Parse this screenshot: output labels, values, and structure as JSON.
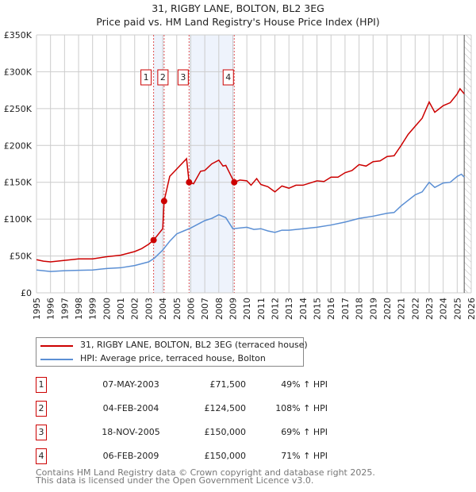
{
  "chart_data": {
    "type": "line",
    "title": "31, RIGBY LANE, BOLTON, BL2 3EG",
    "subtitle": "Price paid vs. HM Land Registry's House Price Index (HPI)",
    "xlim": [
      1995,
      2026
    ],
    "ylim": [
      0,
      350000
    ],
    "x_ticks": [
      "1995",
      "1996",
      "1997",
      "1998",
      "1999",
      "2000",
      "2001",
      "2002",
      "2003",
      "2004",
      "2005",
      "2006",
      "2007",
      "2008",
      "2009",
      "2010",
      "2011",
      "2012",
      "2013",
      "2014",
      "2015",
      "2016",
      "2017",
      "2018",
      "2019",
      "2020",
      "2021",
      "2022",
      "2023",
      "2024",
      "2025",
      "2026"
    ],
    "y_ticks": [
      {
        "v": 0,
        "label": "£0"
      },
      {
        "v": 50000,
        "label": "£50K"
      },
      {
        "v": 100000,
        "label": "£100K"
      },
      {
        "v": 150000,
        "label": "£150K"
      },
      {
        "v": 200000,
        "label": "£200K"
      },
      {
        "v": 250000,
        "label": "£250K"
      },
      {
        "v": 300000,
        "label": "£300K"
      },
      {
        "v": 350000,
        "label": "£350K"
      }
    ],
    "grid": true,
    "legend_position": "below",
    "shaded_ranges": [
      [
        2003.35,
        2004.1
      ],
      [
        2005.88,
        2009.1
      ]
    ],
    "forecast_hatch_from": 2025.5,
    "series": [
      {
        "name": "31, RIGBY LANE, BOLTON, BL2 3EG (terraced house)",
        "color": "#cc0000",
        "points": [
          [
            1995,
            45000
          ],
          [
            1995.5,
            43000
          ],
          [
            1996,
            42000
          ],
          [
            1997,
            44000
          ],
          [
            1998,
            46000
          ],
          [
            1999,
            46000
          ],
          [
            2000,
            49000
          ],
          [
            2001,
            51000
          ],
          [
            2002,
            56000
          ],
          [
            2002.5,
            60000
          ],
          [
            2003,
            66000
          ],
          [
            2003.35,
            71500
          ],
          [
            2004,
            87000
          ],
          [
            2004.1,
            124500
          ],
          [
            2004.5,
            158000
          ],
          [
            2005,
            168000
          ],
          [
            2005.7,
            182000
          ],
          [
            2005.88,
            150000
          ],
          [
            2006.2,
            148000
          ],
          [
            2006.7,
            165000
          ],
          [
            2007,
            166000
          ],
          [
            2007.5,
            175000
          ],
          [
            2008,
            180000
          ],
          [
            2008.3,
            172000
          ],
          [
            2008.5,
            173000
          ],
          [
            2009.1,
            150000
          ],
          [
            2009.5,
            153000
          ],
          [
            2010,
            152000
          ],
          [
            2010.3,
            146000
          ],
          [
            2010.7,
            155000
          ],
          [
            2011,
            147000
          ],
          [
            2011.5,
            144000
          ],
          [
            2012,
            137000
          ],
          [
            2012.5,
            145000
          ],
          [
            2013,
            142000
          ],
          [
            2013.5,
            146000
          ],
          [
            2014,
            146000
          ],
          [
            2015,
            152000
          ],
          [
            2015.5,
            151000
          ],
          [
            2016,
            157000
          ],
          [
            2016.5,
            157000
          ],
          [
            2017,
            163000
          ],
          [
            2017.5,
            166000
          ],
          [
            2018,
            174000
          ],
          [
            2018.5,
            172000
          ],
          [
            2019,
            178000
          ],
          [
            2019.5,
            179000
          ],
          [
            2020,
            185000
          ],
          [
            2020.5,
            186000
          ],
          [
            2021,
            200000
          ],
          [
            2021.5,
            215000
          ],
          [
            2022,
            226000
          ],
          [
            2022.5,
            237000
          ],
          [
            2023,
            259000
          ],
          [
            2023.4,
            245000
          ],
          [
            2024,
            254000
          ],
          [
            2024.5,
            258000
          ],
          [
            2025,
            270000
          ],
          [
            2025.2,
            277000
          ],
          [
            2025.5,
            270000
          ]
        ]
      },
      {
        "name": "HPI: Average price, terraced house, Bolton",
        "color": "#5b8fd4",
        "points": [
          [
            1995,
            31000
          ],
          [
            1996,
            29000
          ],
          [
            1997,
            30000
          ],
          [
            1998,
            30500
          ],
          [
            1999,
            31000
          ],
          [
            2000,
            33000
          ],
          [
            2001,
            34000
          ],
          [
            2002,
            37000
          ],
          [
            2003,
            42000
          ],
          [
            2003.4,
            47000
          ],
          [
            2004,
            58000
          ],
          [
            2004.5,
            70000
          ],
          [
            2005,
            80000
          ],
          [
            2005.5,
            84000
          ],
          [
            2006,
            88000
          ],
          [
            2007,
            98000
          ],
          [
            2007.5,
            101000
          ],
          [
            2008,
            106000
          ],
          [
            2008.5,
            102000
          ],
          [
            2009,
            87000
          ],
          [
            2010,
            89000
          ],
          [
            2010.5,
            86000
          ],
          [
            2011,
            87000
          ],
          [
            2011.5,
            84000
          ],
          [
            2012,
            82000
          ],
          [
            2012.5,
            85000
          ],
          [
            2013,
            85000
          ],
          [
            2014,
            87000
          ],
          [
            2015,
            89000
          ],
          [
            2016,
            92000
          ],
          [
            2017,
            96000
          ],
          [
            2018,
            101000
          ],
          [
            2019,
            104000
          ],
          [
            2020,
            108000
          ],
          [
            2020.5,
            109000
          ],
          [
            2021,
            118000
          ],
          [
            2022,
            133000
          ],
          [
            2022.5,
            137000
          ],
          [
            2023,
            150000
          ],
          [
            2023.4,
            143000
          ],
          [
            2024,
            149000
          ],
          [
            2024.5,
            150000
          ],
          [
            2025,
            158000
          ],
          [
            2025.3,
            161000
          ],
          [
            2025.5,
            157000
          ]
        ]
      }
    ],
    "sales": [
      {
        "num": "1",
        "x": 2003.35,
        "y": 71500,
        "date": "07-MAY-2003",
        "price": "£71,500",
        "hpi": "49% ↑ HPI"
      },
      {
        "num": "2",
        "x": 2004.1,
        "y": 124500,
        "date": "04-FEB-2004",
        "price": "£124,500",
        "hpi": "108% ↑ HPI"
      },
      {
        "num": "3",
        "x": 2005.88,
        "y": 150000,
        "date": "18-NOV-2005",
        "price": "£150,000",
        "hpi": "69% ↑ HPI"
      },
      {
        "num": "4",
        "x": 2009.1,
        "y": 150000,
        "date": "06-FEB-2009",
        "price": "£150,000",
        "hpi": "71% ↑ HPI"
      }
    ]
  },
  "footer": {
    "line1": "Contains HM Land Registry data © Crown copyright and database right 2025.",
    "line2": "This data is licensed under the Open Government Licence v3.0."
  }
}
